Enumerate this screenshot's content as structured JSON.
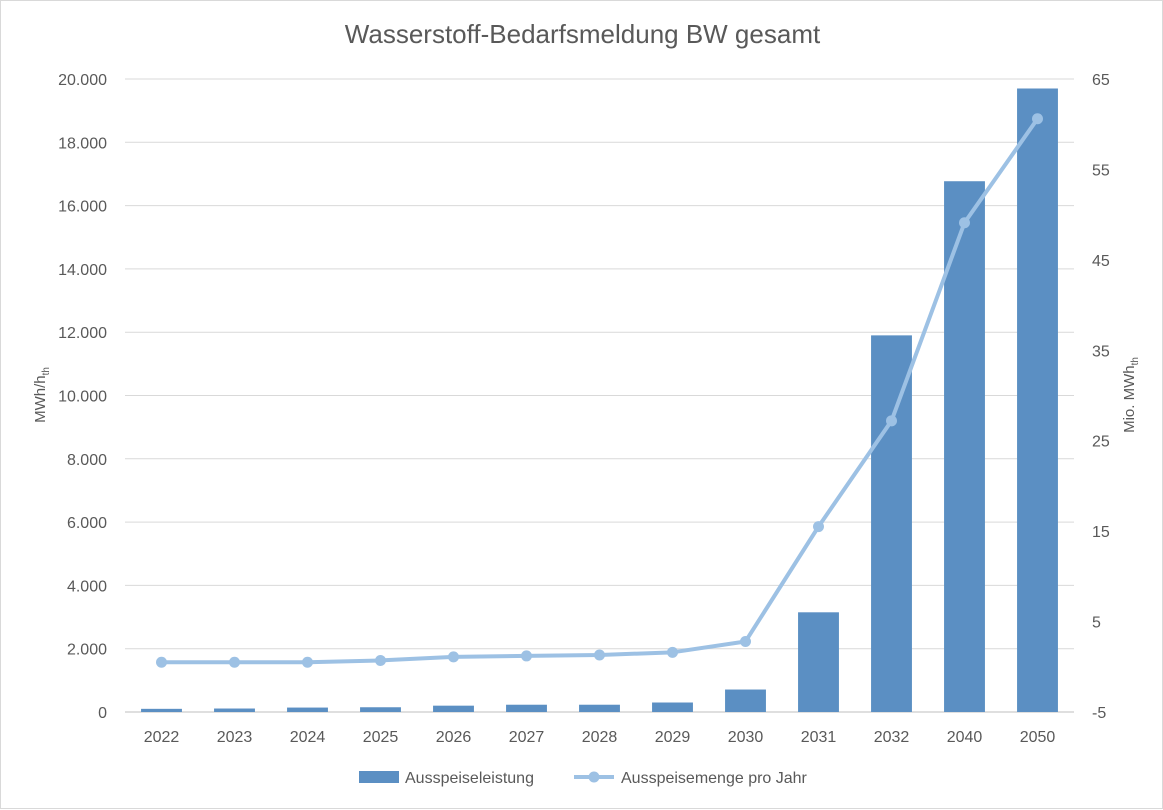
{
  "chart_data": {
    "type": "bar",
    "title": "Wasserstoff-Bedarfsmeldung BW gesamt",
    "categories": [
      "2022",
      "2023",
      "2024",
      "2025",
      "2026",
      "2027",
      "2028",
      "2029",
      "2030",
      "2031",
      "2032",
      "2040",
      "2050"
    ],
    "ylabel_left": {
      "main": "MWh/h",
      "sub": "th"
    },
    "ylabel_right": {
      "main": "Mio. MWh",
      "sub": "th"
    },
    "ylim_left": [
      0,
      20000
    ],
    "ylim_right": [
      -5,
      65
    ],
    "yticks_left": [
      "0",
      "2.000",
      "4.000",
      "6.000",
      "8.000",
      "10.000",
      "12.000",
      "14.000",
      "16.000",
      "18.000",
      "20.000"
    ],
    "yticks_right": [
      "-5",
      "5",
      "15",
      "25",
      "35",
      "45",
      "55",
      "65"
    ],
    "grid": true,
    "legend_position": "bottom",
    "series": [
      {
        "name": "Ausspeiseleistung",
        "type": "bar",
        "axis": "left",
        "color": "#5b8fc3",
        "values": [
          100,
          110,
          140,
          150,
          200,
          230,
          230,
          300,
          710,
          3150,
          11900,
          16770,
          19700
        ]
      },
      {
        "name": "Ausspeisemenge pro Jahr",
        "type": "line",
        "axis": "right",
        "color": "#9dc1e4",
        "values": [
          0.5,
          0.5,
          0.5,
          0.7,
          1.1,
          1.2,
          1.3,
          1.6,
          2.8,
          15.5,
          27.2,
          49.1,
          60.6
        ]
      }
    ]
  }
}
